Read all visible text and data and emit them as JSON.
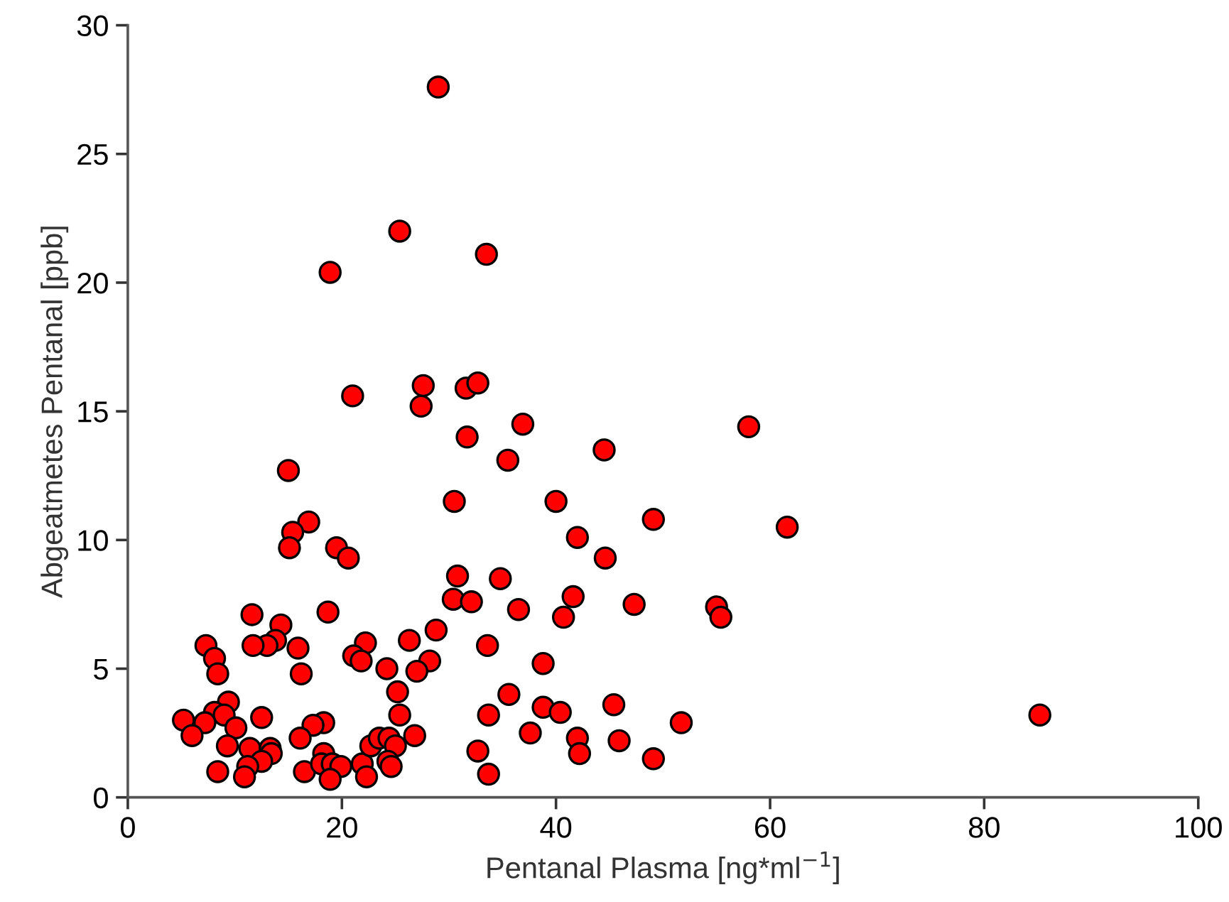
{
  "chart_data": {
    "type": "scatter",
    "xlabel": "Pentanal Plasma [ng*ml$^{−1}$]",
    "ylabel": "Abgeatmetes Pentanal [ppb]",
    "xlim": [
      0,
      100
    ],
    "xticks": [
      0,
      20,
      40,
      60,
      80,
      100
    ],
    "ylim": [
      0,
      30
    ],
    "yticks": [
      0,
      5,
      10,
      15,
      20,
      25,
      30
    ],
    "grid": false,
    "legend": false,
    "marker": "circle",
    "series": [
      {
        "color": "#ff0000",
        "x": [
          29.0,
          25.4,
          33.5,
          18.9,
          21.0,
          27.4,
          27.6,
          31.6,
          32.7,
          31.7,
          36.9,
          35.5,
          44.5,
          58.0,
          15.0,
          30.5,
          40.0,
          49.1,
          61.6,
          42.0,
          44.6,
          16.9,
          15.4,
          15.1,
          19.5,
          20.6,
          30.8,
          34.8,
          30.4,
          32.1,
          36.5,
          41.6,
          47.3,
          40.7,
          55.0,
          55.4,
          11.6,
          18.7,
          14.3,
          28.8,
          13.8,
          13.0,
          11.7,
          7.3,
          15.9,
          22.2,
          21.1,
          21.8,
          26.3,
          8.1,
          8.4,
          16.2,
          24.2,
          28.2,
          27.0,
          33.6,
          38.8,
          25.2,
          35.6,
          25.4,
          33.7,
          38.8,
          40.4,
          45.4,
          51.7,
          9.4,
          8.1,
          9.0,
          5.2,
          7.2,
          6.0,
          10.1,
          12.5,
          18.3,
          17.3,
          16.1,
          9.3,
          11.4,
          13.3,
          13.4,
          12.5,
          11.2,
          10.9,
          8.4,
          16.5,
          18.3,
          18.1,
          19.1,
          19.9,
          18.9,
          21.9,
          22.3,
          22.7,
          23.5,
          24.4,
          25.0,
          24.3,
          24.6,
          26.8,
          32.7,
          33.7,
          37.6,
          42.0,
          42.2,
          45.9,
          49.1,
          85.2
        ],
        "values": [
          27.6,
          22.0,
          21.1,
          20.4,
          15.6,
          15.2,
          16.0,
          15.9,
          16.1,
          14.0,
          14.5,
          13.1,
          13.5,
          14.4,
          12.7,
          11.5,
          11.5,
          10.8,
          10.5,
          10.1,
          9.3,
          10.7,
          10.3,
          9.7,
          9.7,
          9.3,
          8.6,
          8.5,
          7.7,
          7.6,
          7.3,
          7.8,
          7.5,
          7.0,
          7.4,
          7.0,
          7.1,
          7.2,
          6.7,
          6.5,
          6.1,
          5.9,
          5.9,
          5.9,
          5.8,
          6.0,
          5.5,
          5.3,
          6.1,
          5.4,
          4.8,
          4.8,
          5.0,
          5.3,
          4.9,
          5.9,
          5.2,
          4.1,
          4.0,
          3.2,
          3.2,
          3.5,
          3.3,
          3.6,
          2.9,
          3.7,
          3.3,
          3.2,
          3.0,
          2.9,
          2.4,
          2.7,
          3.1,
          2.9,
          2.8,
          2.3,
          2.0,
          1.9,
          1.9,
          1.7,
          1.4,
          1.2,
          0.8,
          1.0,
          1.0,
          1.7,
          1.3,
          1.3,
          1.2,
          0.7,
          1.3,
          0.8,
          2.0,
          2.3,
          2.3,
          2.0,
          1.4,
          1.2,
          2.4,
          1.8,
          0.9,
          2.5,
          2.3,
          1.7,
          2.2,
          1.5,
          3.2
        ]
      }
    ]
  }
}
